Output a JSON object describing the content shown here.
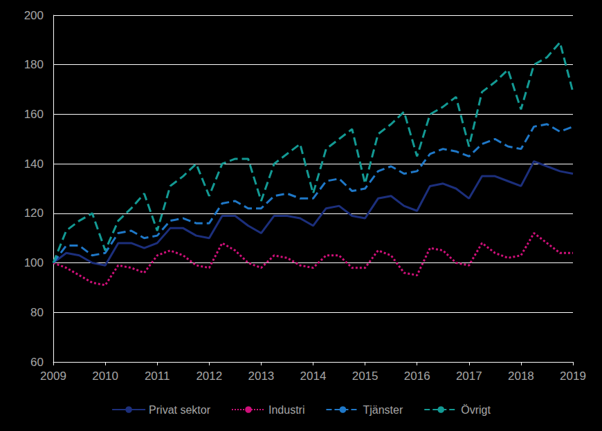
{
  "chart_data": {
    "type": "line",
    "categories": [
      "2009",
      null,
      null,
      null,
      "2010",
      null,
      null,
      null,
      "2011",
      null,
      null,
      null,
      "2012",
      null,
      null,
      null,
      "2013",
      null,
      null,
      null,
      "2014",
      null,
      null,
      null,
      "2015",
      null,
      null,
      null,
      "2016",
      null,
      null,
      null,
      "2017",
      null,
      null,
      null,
      "2018",
      null,
      null,
      null,
      "2019"
    ],
    "series": [
      {
        "name": "Privat sektor",
        "color": "#1c2f7c",
        "line_style": "solid",
        "values": [
          100,
          104,
          103,
          100,
          99,
          108,
          108,
          106,
          108,
          114,
          114,
          111,
          110,
          119,
          119,
          115,
          112,
          119,
          119,
          118,
          115,
          122,
          123,
          119,
          118,
          126,
          127,
          123,
          121,
          131,
          132,
          130,
          126,
          135,
          135,
          133,
          131,
          141,
          139,
          137,
          136
        ]
      },
      {
        "name": "Industri",
        "color": "#d0107a",
        "line_style": "dotted",
        "values": [
          100,
          98,
          95,
          92,
          91,
          99,
          98,
          96,
          103,
          105,
          103,
          99,
          98,
          108,
          105,
          100,
          98,
          103,
          102,
          99,
          98,
          103,
          103,
          98,
          98,
          105,
          103,
          96,
          95,
          106,
          105,
          100,
          99,
          108,
          104,
          102,
          103,
          112,
          108,
          104,
          104
        ]
      },
      {
        "name": "Tjänster",
        "color": "#1f78c8",
        "line_style": "dashed",
        "values": [
          100,
          107,
          107,
          103,
          104,
          112,
          113,
          110,
          111,
          117,
          118,
          116,
          116,
          124,
          125,
          122,
          122,
          127,
          128,
          126,
          126,
          133,
          134,
          129,
          130,
          137,
          139,
          136,
          137,
          144,
          146,
          145,
          143,
          148,
          150,
          147,
          146,
          155,
          156,
          153,
          155
        ]
      },
      {
        "name": "Övrigt",
        "color": "#139a94",
        "line_style": "dashed",
        "values": [
          100,
          113,
          117,
          120,
          105,
          117,
          122,
          128,
          113,
          131,
          135,
          140,
          127,
          140,
          142,
          142,
          125,
          140,
          144,
          148,
          128,
          146,
          150,
          154,
          132,
          152,
          156,
          161,
          143,
          160,
          163,
          167,
          147,
          169,
          173,
          178,
          162,
          180,
          183,
          189,
          169
        ]
      }
    ],
    "ylim": [
      60,
      200
    ],
    "yticks": [
      60,
      80,
      100,
      120,
      140,
      160,
      180,
      200
    ],
    "grid": true,
    "legend": "bottom"
  }
}
